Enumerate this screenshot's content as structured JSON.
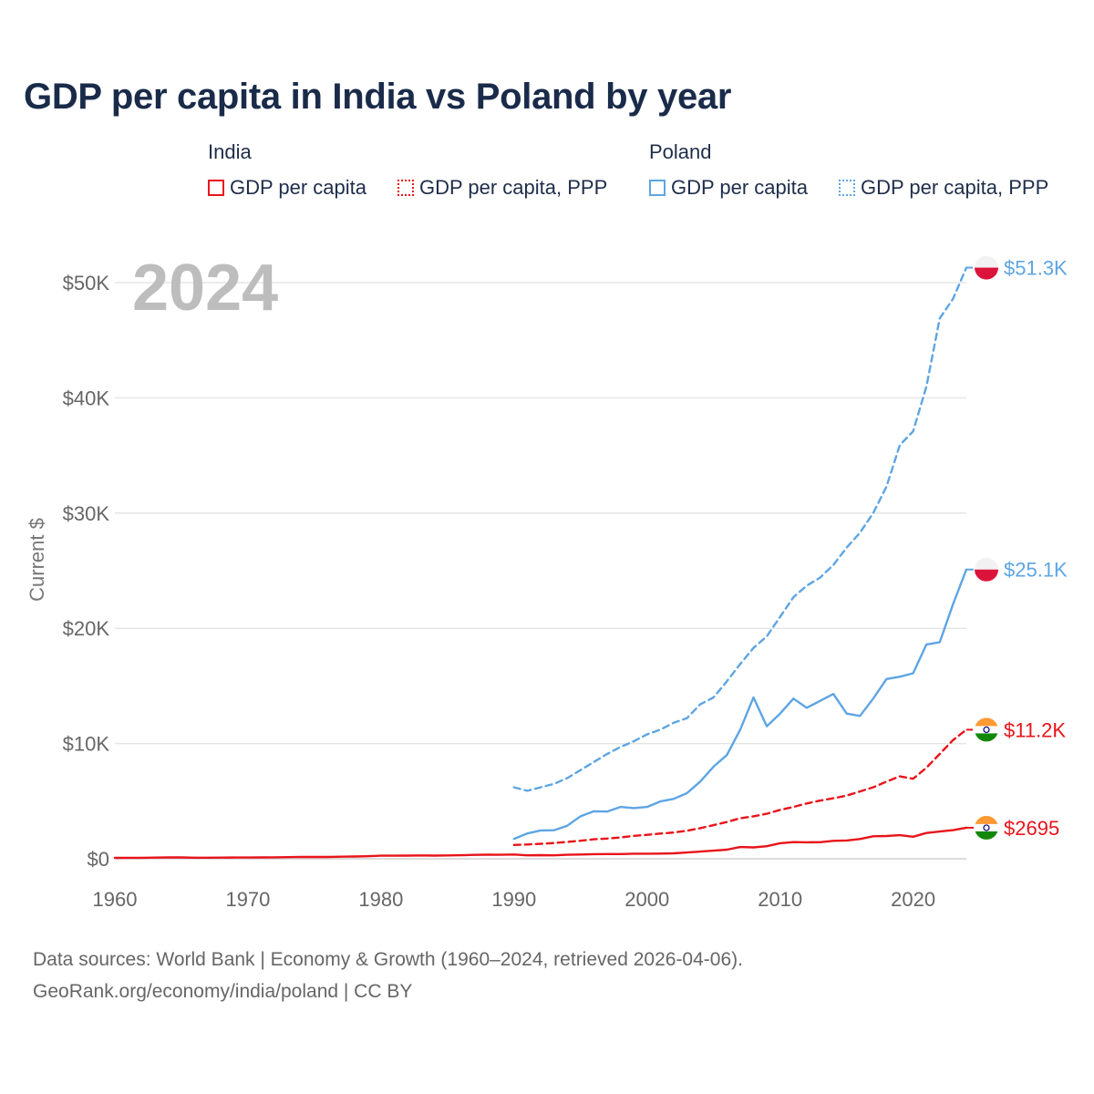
{
  "title": "GDP per capita in India vs Poland by year",
  "legend": {
    "groups": [
      {
        "name": "India",
        "items": [
          {
            "label": "GDP per capita",
            "color": "#e8141a",
            "style": "solid"
          },
          {
            "label": "GDP per capita, PPP",
            "color": "#e8141a",
            "style": "dotted"
          }
        ]
      },
      {
        "name": "Poland",
        "items": [
          {
            "label": "GDP per capita",
            "color": "#5ea5e3",
            "style": "solid"
          },
          {
            "label": "GDP per capita, PPP",
            "color": "#5ea5e3",
            "style": "dotted"
          }
        ]
      }
    ]
  },
  "year_label": "2024",
  "footer": {
    "line1": "Data sources: World Bank | Economy & Growth (1960–2024, retrieved 2026-04-06).",
    "line2": "GeoRank.org/economy/india/poland | CC BY"
  },
  "chart_data": {
    "type": "line",
    "title": "GDP per capita in India vs Poland by year",
    "xlabel": "",
    "ylabel": "Current $",
    "xlim": [
      1960,
      2024
    ],
    "ylim": [
      0,
      52000
    ],
    "x_ticks": [
      1960,
      1970,
      1980,
      1990,
      2000,
      2010,
      2020
    ],
    "y_ticks": [
      0,
      10000,
      20000,
      30000,
      40000,
      50000
    ],
    "y_tick_labels": [
      "$0",
      "$10K",
      "$20K",
      "$30K",
      "$40K",
      "$50K"
    ],
    "grid": true,
    "legend_position": "top",
    "series": [
      {
        "country": "India",
        "name": "GDP per capita",
        "color": "#e8141a",
        "dash": "solid",
        "end_label": "$2695",
        "flag": "india",
        "x": [
          1960,
          1961,
          1962,
          1963,
          1964,
          1965,
          1966,
          1967,
          1968,
          1969,
          1970,
          1971,
          1972,
          1973,
          1974,
          1975,
          1976,
          1977,
          1978,
          1979,
          1980,
          1981,
          1982,
          1983,
          1984,
          1985,
          1986,
          1987,
          1988,
          1989,
          1990,
          1991,
          1992,
          1993,
          1994,
          1995,
          1996,
          1997,
          1998,
          1999,
          2000,
          2001,
          2002,
          2003,
          2004,
          2005,
          2006,
          2007,
          2008,
          2009,
          2010,
          2011,
          2012,
          2013,
          2014,
          2015,
          2016,
          2017,
          2018,
          2019,
          2020,
          2021,
          2022,
          2023,
          2024
        ],
        "y": [
          83,
          86,
          89,
          100,
          116,
          120,
          91,
          97,
          101,
          109,
          113,
          120,
          125,
          144,
          165,
          160,
          158,
          180,
          201,
          219,
          267,
          271,
          275,
          292,
          277,
          296,
          310,
          340,
          354,
          347,
          368,
          303,
          316,
          301,
          346,
          374,
          400,
          415,
          413,
          442,
          443,
          452,
          471,
          546,
          625,
          707,
          792,
          1018,
          991,
          1090,
          1351,
          1450,
          1434,
          1438,
          1560,
          1590,
          1714,
          1957,
          1974,
          2050,
          1913,
          2238,
          2366,
          2481,
          2695
        ]
      },
      {
        "country": "India",
        "name": "GDP per capita, PPP",
        "color": "#e8141a",
        "dash": "dashed",
        "end_label": "$11.2K",
        "flag": "india",
        "x": [
          1990,
          1991,
          1992,
          1993,
          1994,
          1995,
          1996,
          1997,
          1998,
          1999,
          2000,
          2001,
          2002,
          2003,
          2004,
          2005,
          2006,
          2007,
          2008,
          2009,
          2010,
          2011,
          2012,
          2013,
          2014,
          2015,
          2016,
          2017,
          2018,
          2019,
          2020,
          2021,
          2022,
          2023,
          2024
        ],
        "y": [
          1200,
          1240,
          1300,
          1370,
          1460,
          1570,
          1690,
          1760,
          1850,
          1990,
          2080,
          2190,
          2280,
          2440,
          2660,
          2920,
          3200,
          3520,
          3690,
          3910,
          4240,
          4500,
          4800,
          5050,
          5250,
          5480,
          5850,
          6200,
          6700,
          7150,
          6950,
          7900,
          9100,
          10300,
          11200
        ]
      },
      {
        "country": "Poland",
        "name": "GDP per capita",
        "color": "#5ea5e3",
        "dash": "solid",
        "end_label": "$25.1K",
        "flag": "poland",
        "x": [
          1990,
          1991,
          1992,
          1993,
          1994,
          1995,
          1996,
          1997,
          1998,
          1999,
          2000,
          2001,
          2002,
          2003,
          2004,
          2005,
          2006,
          2007,
          2008,
          2009,
          2010,
          2011,
          2012,
          2013,
          2014,
          2015,
          2016,
          2017,
          2018,
          2019,
          2020,
          2021,
          2022,
          2023,
          2024
        ],
        "y": [
          1730,
          2200,
          2460,
          2480,
          2870,
          3690,
          4120,
          4100,
          4500,
          4400,
          4500,
          4980,
          5200,
          5700,
          6700,
          8000,
          9000,
          11200,
          14000,
          11500,
          12600,
          13900,
          13100,
          13700,
          14300,
          12600,
          12400,
          13900,
          15600,
          15800,
          16100,
          18600,
          18800,
          22100,
          25100
        ]
      },
      {
        "country": "Poland",
        "name": "GDP per capita, PPP",
        "color": "#5ea5e3",
        "dash": "dashed",
        "end_label": "$51.3K",
        "flag": "poland",
        "x": [
          1990,
          1991,
          1992,
          1993,
          1994,
          1995,
          1996,
          1997,
          1998,
          1999,
          2000,
          2001,
          2002,
          2003,
          2004,
          2005,
          2006,
          2007,
          2008,
          2009,
          2010,
          2011,
          2012,
          2013,
          2014,
          2015,
          2016,
          2017,
          2018,
          2019,
          2020,
          2021,
          2022,
          2023,
          2024
        ],
        "y": [
          6200,
          5900,
          6200,
          6500,
          7000,
          7700,
          8400,
          9100,
          9700,
          10200,
          10800,
          11200,
          11800,
          12200,
          13400,
          14000,
          15400,
          16900,
          18300,
          19300,
          21000,
          22700,
          23700,
          24400,
          25500,
          27000,
          28300,
          30000,
          32300,
          35900,
          37100,
          41000,
          46900,
          48600,
          51300
        ]
      }
    ]
  }
}
